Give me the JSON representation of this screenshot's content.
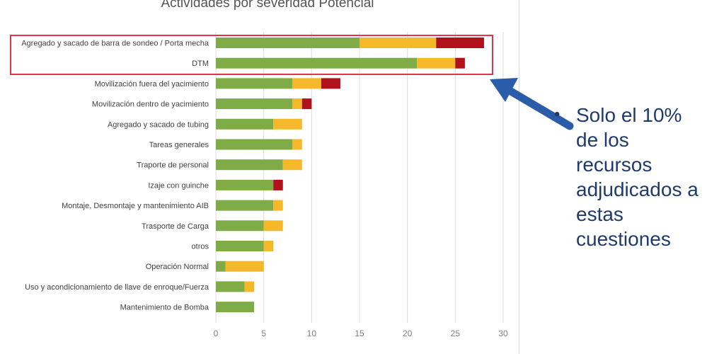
{
  "chart_data": {
    "type": "bar",
    "orientation": "horizontal",
    "stacked": true,
    "title": "Actividades por severidad Potencial",
    "categories": [
      "Agregado y sacado de barra de sondeo / Porta mecha",
      "DTM",
      "Movilización fuera del yacimiento",
      "Movilización dentro de yacimiento",
      "Agregado y sacado de tubing",
      "Tareas generales",
      "Traporte de personal",
      "Izaje con guinche",
      "Montaje, Desmontaje y mantenimiento AIB",
      "Trasporte de Carga",
      "otros",
      "Operación Normal",
      "Uso y acondicionamiento de llave de enroque/Fuerza",
      "Mantenimiento de Bomba"
    ],
    "series": [
      {
        "color": "#7fac47",
        "values": [
          15,
          21,
          8,
          8,
          6,
          8,
          7,
          6,
          6,
          5,
          5,
          1,
          3,
          4
        ]
      },
      {
        "color": "#f6b82b",
        "values": [
          8,
          4,
          3,
          1,
          3,
          1,
          2,
          0,
          1,
          2,
          1,
          4,
          1,
          0
        ]
      },
      {
        "color": "#b1111a",
        "values": [
          5,
          1,
          2,
          1,
          0,
          0,
          0,
          1,
          0,
          0,
          0,
          0,
          0,
          0
        ]
      }
    ],
    "xlim": [
      0,
      30
    ],
    "xticks": [
      "0",
      "5",
      "10",
      "15",
      "20",
      "25",
      "30"
    ],
    "grid": true,
    "legend": "none"
  },
  "annotation": {
    "bullet": "•",
    "text": "Solo el 10% de los recursos adjudicados a estas cuestiones",
    "arrow_color": "#2a5caa",
    "box_color": "#e0344a"
  }
}
